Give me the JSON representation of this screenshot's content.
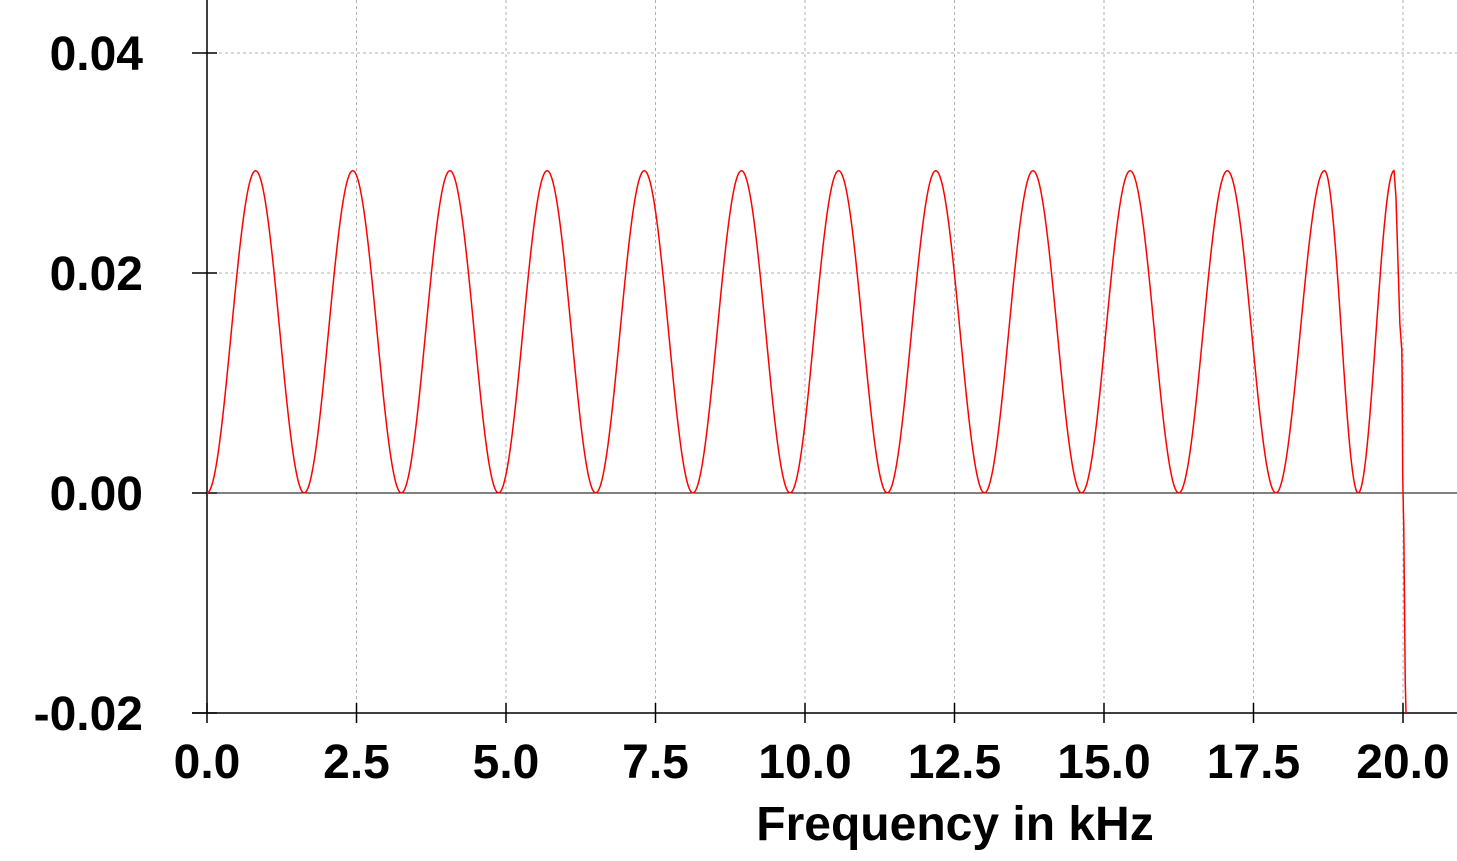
{
  "chart_data": {
    "type": "line",
    "title": "",
    "xlabel": "Frequency in kHz",
    "ylabel": "",
    "xlim": [
      0.0,
      20.0
    ],
    "ylim": [
      -0.02,
      0.04
    ],
    "grid": true,
    "legend": "none",
    "x_ticks": [
      0.0,
      2.5,
      5.0,
      7.5,
      10.0,
      12.5,
      15.0,
      17.5,
      20.0
    ],
    "x_tick_labels": [
      "0.0",
      "2.5",
      "5.0",
      "7.5",
      "10.0",
      "12.5",
      "15.0",
      "17.5",
      "20.0"
    ],
    "y_ticks": [
      -0.02,
      0.0,
      0.02,
      0.04
    ],
    "y_tick_labels": [
      "-0.02",
      "0.00",
      "0.02",
      "0.04"
    ],
    "series": [
      {
        "color": "#ff0000",
        "x": [
          0.0,
          0.8125,
          1.625,
          2.4375,
          3.25,
          4.0625,
          4.875,
          5.6875,
          6.5,
          7.3125,
          8.125,
          8.9375,
          9.75,
          10.5625,
          11.375,
          12.1875,
          13.0,
          13.8125,
          14.625,
          15.4375,
          16.25,
          17.0625,
          17.875,
          18.6875,
          19.25,
          19.85,
          19.98,
          20.0,
          20.05
        ],
        "y": [
          0.0,
          0.0293,
          0.0,
          0.0293,
          0.0,
          0.0293,
          0.0,
          0.0293,
          0.0,
          0.0293,
          0.0,
          0.0293,
          0.0,
          0.0293,
          0.0,
          0.0293,
          0.0,
          0.0293,
          0.0,
          0.0293,
          0.0,
          0.0293,
          0.0,
          0.0293,
          0.0,
          0.0293,
          0.013,
          0.0,
          -0.02
        ]
      }
    ]
  }
}
